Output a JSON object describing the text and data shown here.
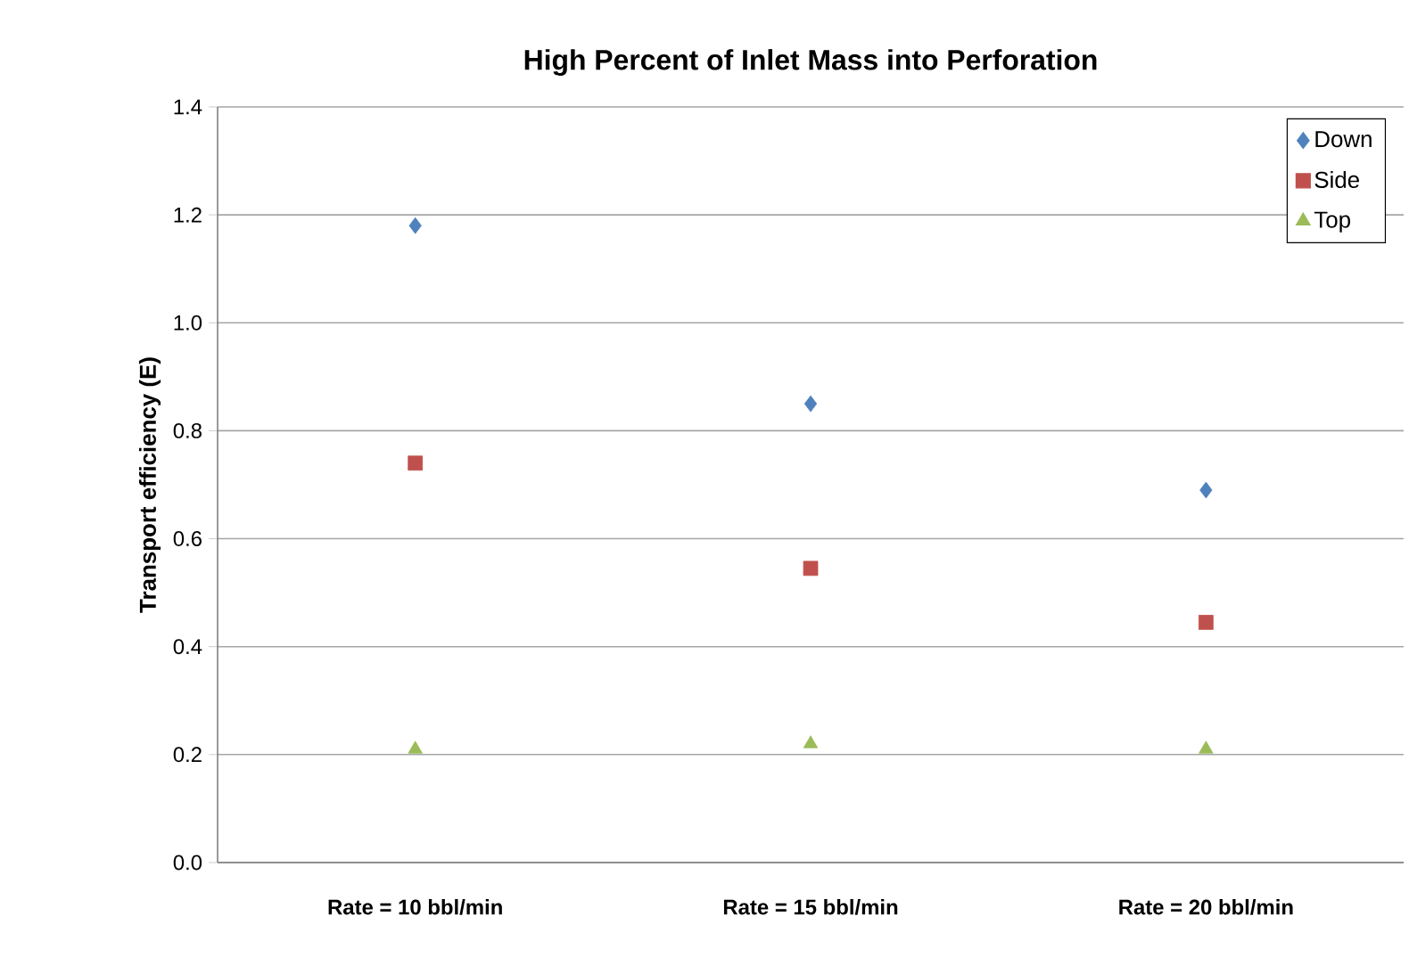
{
  "chart_data": {
    "type": "scatter",
    "title": "High Percent of Inlet Mass into Perforation",
    "ylabel": "Transport efficiency (E)",
    "categories": [
      "Rate = 10 bbl/min",
      "Rate = 15 bbl/min",
      "Rate = 20 bbl/min"
    ],
    "series": [
      {
        "name": "Down",
        "color": "#4f81bd",
        "marker": "diamond",
        "values": [
          1.18,
          0.85,
          0.69
        ]
      },
      {
        "name": "Side",
        "color": "#c0504d",
        "marker": "square",
        "values": [
          0.74,
          0.545,
          0.445
        ]
      },
      {
        "name": "Top",
        "color": "#9bbb59",
        "marker": "triangle",
        "values": [
          0.21,
          0.22,
          0.21
        ]
      }
    ],
    "ylim": [
      0,
      1.4
    ],
    "yticks": [
      {
        "value": 0,
        "label": "0.0"
      },
      0.2,
      0.4,
      0.6,
      0.8,
      {
        "value": 1,
        "label": "1.0"
      },
      1.2,
      1.4
    ],
    "grid": "y",
    "legend": "top right"
  }
}
